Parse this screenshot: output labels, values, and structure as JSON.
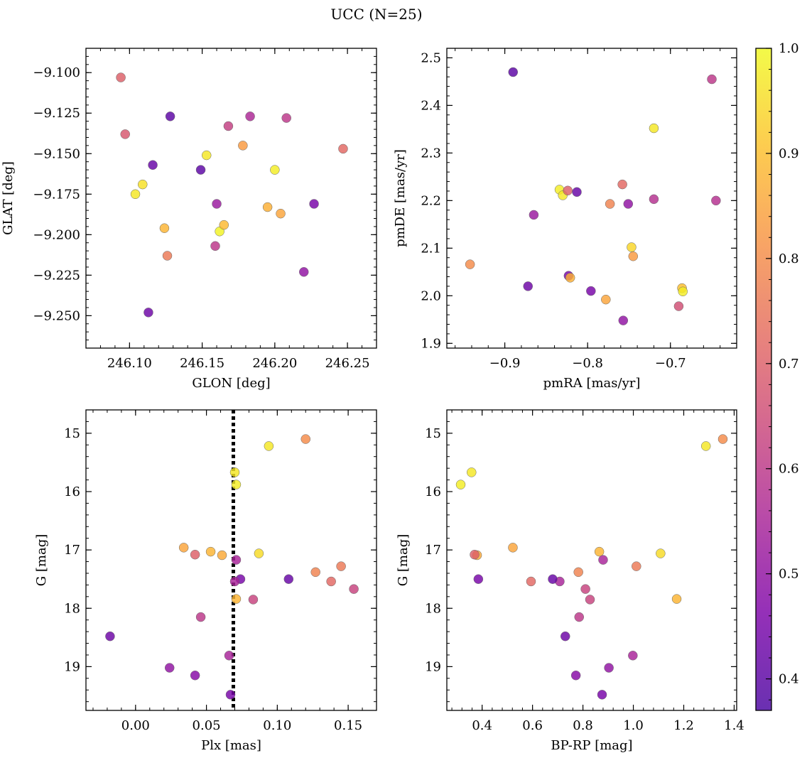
{
  "figure": {
    "title": "UCC (N=25)",
    "colorbar": {
      "range": [
        0.37,
        1.0
      ],
      "ticks": [
        0.4,
        0.5,
        0.6,
        0.7,
        0.8,
        0.9,
        1.0
      ],
      "tick_labels": [
        "0.4",
        "0.5",
        "0.6",
        "0.7",
        "0.8",
        "0.9",
        "1.0"
      ],
      "colormap": "plasma"
    },
    "reference_line": {
      "panel": 2,
      "axis": "x",
      "value": 0.069,
      "style": "dotted",
      "color": "#000000"
    }
  },
  "chart_data": [
    {
      "type": "scatter",
      "xlabel": "GLON [deg]",
      "ylabel": "GLAT [deg]",
      "xlim": [
        246.07,
        246.27
      ],
      "ylim": [
        -9.27,
        -9.085
      ],
      "y_inverted": false,
      "xticks": [
        246.1,
        246.15,
        246.2,
        246.25
      ],
      "xtick_labels": [
        "246.10",
        "246.15",
        "246.20",
        "246.25"
      ],
      "yticks": [
        -9.1,
        -9.125,
        -9.15,
        -9.175,
        -9.2,
        -9.225,
        -9.25
      ],
      "ytick_labels": [
        "−9.100",
        "−9.125",
        "−9.150",
        "−9.175",
        "−9.200",
        "−9.225",
        "−9.250"
      ],
      "points": [
        {
          "x": 246.094,
          "y": -9.103,
          "c": 0.7
        },
        {
          "x": 246.097,
          "y": -9.138,
          "c": 0.68
        },
        {
          "x": 246.128,
          "y": -9.127,
          "c": 0.4
        },
        {
          "x": 246.116,
          "y": -9.157,
          "c": 0.42
        },
        {
          "x": 246.109,
          "y": -9.169,
          "c": 0.96
        },
        {
          "x": 246.104,
          "y": -9.175,
          "c": 0.97
        },
        {
          "x": 246.124,
          "y": -9.196,
          "c": 0.88
        },
        {
          "x": 246.126,
          "y": -9.213,
          "c": 0.76
        },
        {
          "x": 246.113,
          "y": -9.248,
          "c": 0.43
        },
        {
          "x": 246.149,
          "y": -9.16,
          "c": 0.4
        },
        {
          "x": 246.153,
          "y": -9.151,
          "c": 0.97
        },
        {
          "x": 246.16,
          "y": -9.181,
          "c": 0.52
        },
        {
          "x": 246.162,
          "y": -9.198,
          "c": 0.99
        },
        {
          "x": 246.165,
          "y": -9.194,
          "c": 0.89
        },
        {
          "x": 246.159,
          "y": -9.207,
          "c": 0.6
        },
        {
          "x": 246.168,
          "y": -9.133,
          "c": 0.62
        },
        {
          "x": 246.178,
          "y": -9.145,
          "c": 0.83
        },
        {
          "x": 246.183,
          "y": -9.127,
          "c": 0.56
        },
        {
          "x": 246.2,
          "y": -9.16,
          "c": 0.98
        },
        {
          "x": 246.195,
          "y": -9.183,
          "c": 0.87
        },
        {
          "x": 246.204,
          "y": -9.187,
          "c": 0.85
        },
        {
          "x": 246.208,
          "y": -9.128,
          "c": 0.6
        },
        {
          "x": 246.22,
          "y": -9.223,
          "c": 0.5
        },
        {
          "x": 246.227,
          "y": -9.181,
          "c": 0.45
        },
        {
          "x": 246.247,
          "y": -9.147,
          "c": 0.72
        }
      ]
    },
    {
      "type": "scatter",
      "xlabel": "pmRA [mas/yr]",
      "ylabel": "pmDE [mas/yr]",
      "xlim": [
        -0.97,
        -0.62
      ],
      "ylim": [
        1.89,
        2.52
      ],
      "y_inverted": false,
      "xticks": [
        -0.9,
        -0.8,
        -0.7
      ],
      "xtick_labels": [
        "−0.9",
        "−0.8",
        "−0.7"
      ],
      "yticks": [
        1.9,
        2.0,
        2.1,
        2.2,
        2.3,
        2.4,
        2.5
      ],
      "ytick_labels": [
        "1.9",
        "2.0",
        "2.1",
        "2.2",
        "2.3",
        "2.4",
        "2.5"
      ],
      "points": [
        {
          "x": -0.89,
          "y": 2.47,
          "c": 0.4
        },
        {
          "x": -0.65,
          "y": 2.455,
          "c": 0.6
        },
        {
          "x": -0.72,
          "y": 2.352,
          "c": 0.97
        },
        {
          "x": -0.834,
          "y": 2.223,
          "c": 0.98
        },
        {
          "x": -0.83,
          "y": 2.211,
          "c": 0.97
        },
        {
          "x": -0.824,
          "y": 2.221,
          "c": 0.7
        },
        {
          "x": -0.813,
          "y": 2.218,
          "c": 0.42
        },
        {
          "x": -0.865,
          "y": 2.17,
          "c": 0.52
        },
        {
          "x": -0.758,
          "y": 2.234,
          "c": 0.72
        },
        {
          "x": -0.773,
          "y": 2.193,
          "c": 0.78
        },
        {
          "x": -0.751,
          "y": 2.193,
          "c": 0.5
        },
        {
          "x": -0.72,
          "y": 2.203,
          "c": 0.58
        },
        {
          "x": -0.645,
          "y": 2.2,
          "c": 0.58
        },
        {
          "x": -0.747,
          "y": 2.102,
          "c": 0.94
        },
        {
          "x": -0.745,
          "y": 2.083,
          "c": 0.83
        },
        {
          "x": -0.942,
          "y": 2.066,
          "c": 0.8
        },
        {
          "x": -0.823,
          "y": 2.042,
          "c": 0.45
        },
        {
          "x": -0.821,
          "y": 2.038,
          "c": 0.87
        },
        {
          "x": -0.872,
          "y": 2.02,
          "c": 0.43
        },
        {
          "x": -0.796,
          "y": 2.01,
          "c": 0.45
        },
        {
          "x": -0.778,
          "y": 1.992,
          "c": 0.85
        },
        {
          "x": -0.686,
          "y": 2.016,
          "c": 0.9
        },
        {
          "x": -0.685,
          "y": 2.009,
          "c": 0.98
        },
        {
          "x": -0.69,
          "y": 1.978,
          "c": 0.66
        },
        {
          "x": -0.757,
          "y": 1.948,
          "c": 0.5
        }
      ]
    },
    {
      "type": "scatter",
      "xlabel": "Plx [mas]",
      "ylabel": "G [mag]",
      "xlim": [
        -0.035,
        0.17
      ],
      "ylim": [
        14.6,
        19.75
      ],
      "y_inverted": true,
      "xticks": [
        0.0,
        0.05,
        0.1,
        0.15
      ],
      "xtick_labels": [
        "0.00",
        "0.05",
        "0.10",
        "0.15"
      ],
      "yticks": [
        15,
        16,
        17,
        18,
        19
      ],
      "ytick_labels": [
        "15",
        "16",
        "17",
        "18",
        "19"
      ],
      "points": [
        {
          "x": 0.094,
          "y": 15.22,
          "c": 0.97
        },
        {
          "x": 0.12,
          "y": 15.1,
          "c": 0.8
        },
        {
          "x": 0.07,
          "y": 15.67,
          "c": 0.97
        },
        {
          "x": 0.071,
          "y": 15.88,
          "c": 0.98
        },
        {
          "x": 0.034,
          "y": 16.96,
          "c": 0.85
        },
        {
          "x": 0.053,
          "y": 17.03,
          "c": 0.88
        },
        {
          "x": 0.061,
          "y": 17.09,
          "c": 0.86
        },
        {
          "x": 0.042,
          "y": 17.08,
          "c": 0.7
        },
        {
          "x": 0.087,
          "y": 17.06,
          "c": 0.95
        },
        {
          "x": 0.071,
          "y": 17.17,
          "c": 0.55
        },
        {
          "x": 0.074,
          "y": 17.5,
          "c": 0.45
        },
        {
          "x": 0.07,
          "y": 17.54,
          "c": 0.55
        },
        {
          "x": 0.108,
          "y": 17.5,
          "c": 0.42
        },
        {
          "x": 0.127,
          "y": 17.38,
          "c": 0.78
        },
        {
          "x": 0.145,
          "y": 17.28,
          "c": 0.76
        },
        {
          "x": 0.138,
          "y": 17.54,
          "c": 0.72
        },
        {
          "x": 0.154,
          "y": 17.67,
          "c": 0.63
        },
        {
          "x": 0.071,
          "y": 17.84,
          "c": 0.88
        },
        {
          "x": 0.083,
          "y": 17.85,
          "c": 0.63
        },
        {
          "x": 0.046,
          "y": 18.15,
          "c": 0.6
        },
        {
          "x": -0.018,
          "y": 18.48,
          "c": 0.43
        },
        {
          "x": 0.024,
          "y": 19.02,
          "c": 0.5
        },
        {
          "x": 0.042,
          "y": 19.15,
          "c": 0.48
        },
        {
          "x": 0.066,
          "y": 18.81,
          "c": 0.55
        },
        {
          "x": 0.067,
          "y": 19.48,
          "c": 0.45
        }
      ]
    },
    {
      "type": "scatter",
      "xlabel": "BP-RP [mag]",
      "ylabel": "G [mag]",
      "xlim": [
        0.26,
        1.41
      ],
      "ylim": [
        14.6,
        19.75
      ],
      "y_inverted": true,
      "xticks": [
        0.4,
        0.6,
        0.8,
        1.0,
        1.2,
        1.4
      ],
      "xtick_labels": [
        "0.4",
        "0.6",
        "0.8",
        "1.0",
        "1.2",
        "1.4"
      ],
      "yticks": [
        15,
        16,
        17,
        18,
        19
      ],
      "ytick_labels": [
        "15",
        "16",
        "17",
        "18",
        "19"
      ],
      "points": [
        {
          "x": 1.288,
          "y": 15.22,
          "c": 0.97
        },
        {
          "x": 1.355,
          "y": 15.1,
          "c": 0.8
        },
        {
          "x": 0.358,
          "y": 15.67,
          "c": 0.97
        },
        {
          "x": 0.315,
          "y": 15.88,
          "c": 0.98
        },
        {
          "x": 0.522,
          "y": 16.96,
          "c": 0.85
        },
        {
          "x": 0.865,
          "y": 17.03,
          "c": 0.88
        },
        {
          "x": 0.38,
          "y": 17.09,
          "c": 0.86
        },
        {
          "x": 0.37,
          "y": 17.08,
          "c": 0.7
        },
        {
          "x": 1.108,
          "y": 17.06,
          "c": 0.95
        },
        {
          "x": 0.88,
          "y": 17.17,
          "c": 0.55
        },
        {
          "x": 0.385,
          "y": 17.5,
          "c": 0.45
        },
        {
          "x": 0.708,
          "y": 17.54,
          "c": 0.55
        },
        {
          "x": 0.68,
          "y": 17.5,
          "c": 0.42
        },
        {
          "x": 0.782,
          "y": 17.38,
          "c": 0.78
        },
        {
          "x": 1.012,
          "y": 17.28,
          "c": 0.76
        },
        {
          "x": 0.594,
          "y": 17.54,
          "c": 0.72
        },
        {
          "x": 0.81,
          "y": 17.67,
          "c": 0.63
        },
        {
          "x": 1.172,
          "y": 17.84,
          "c": 0.88
        },
        {
          "x": 0.828,
          "y": 17.85,
          "c": 0.63
        },
        {
          "x": 0.785,
          "y": 18.15,
          "c": 0.6
        },
        {
          "x": 0.73,
          "y": 18.48,
          "c": 0.43
        },
        {
          "x": 0.903,
          "y": 19.02,
          "c": 0.5
        },
        {
          "x": 0.772,
          "y": 19.15,
          "c": 0.48
        },
        {
          "x": 0.998,
          "y": 18.81,
          "c": 0.55
        },
        {
          "x": 0.876,
          "y": 19.48,
          "c": 0.45
        }
      ]
    }
  ]
}
